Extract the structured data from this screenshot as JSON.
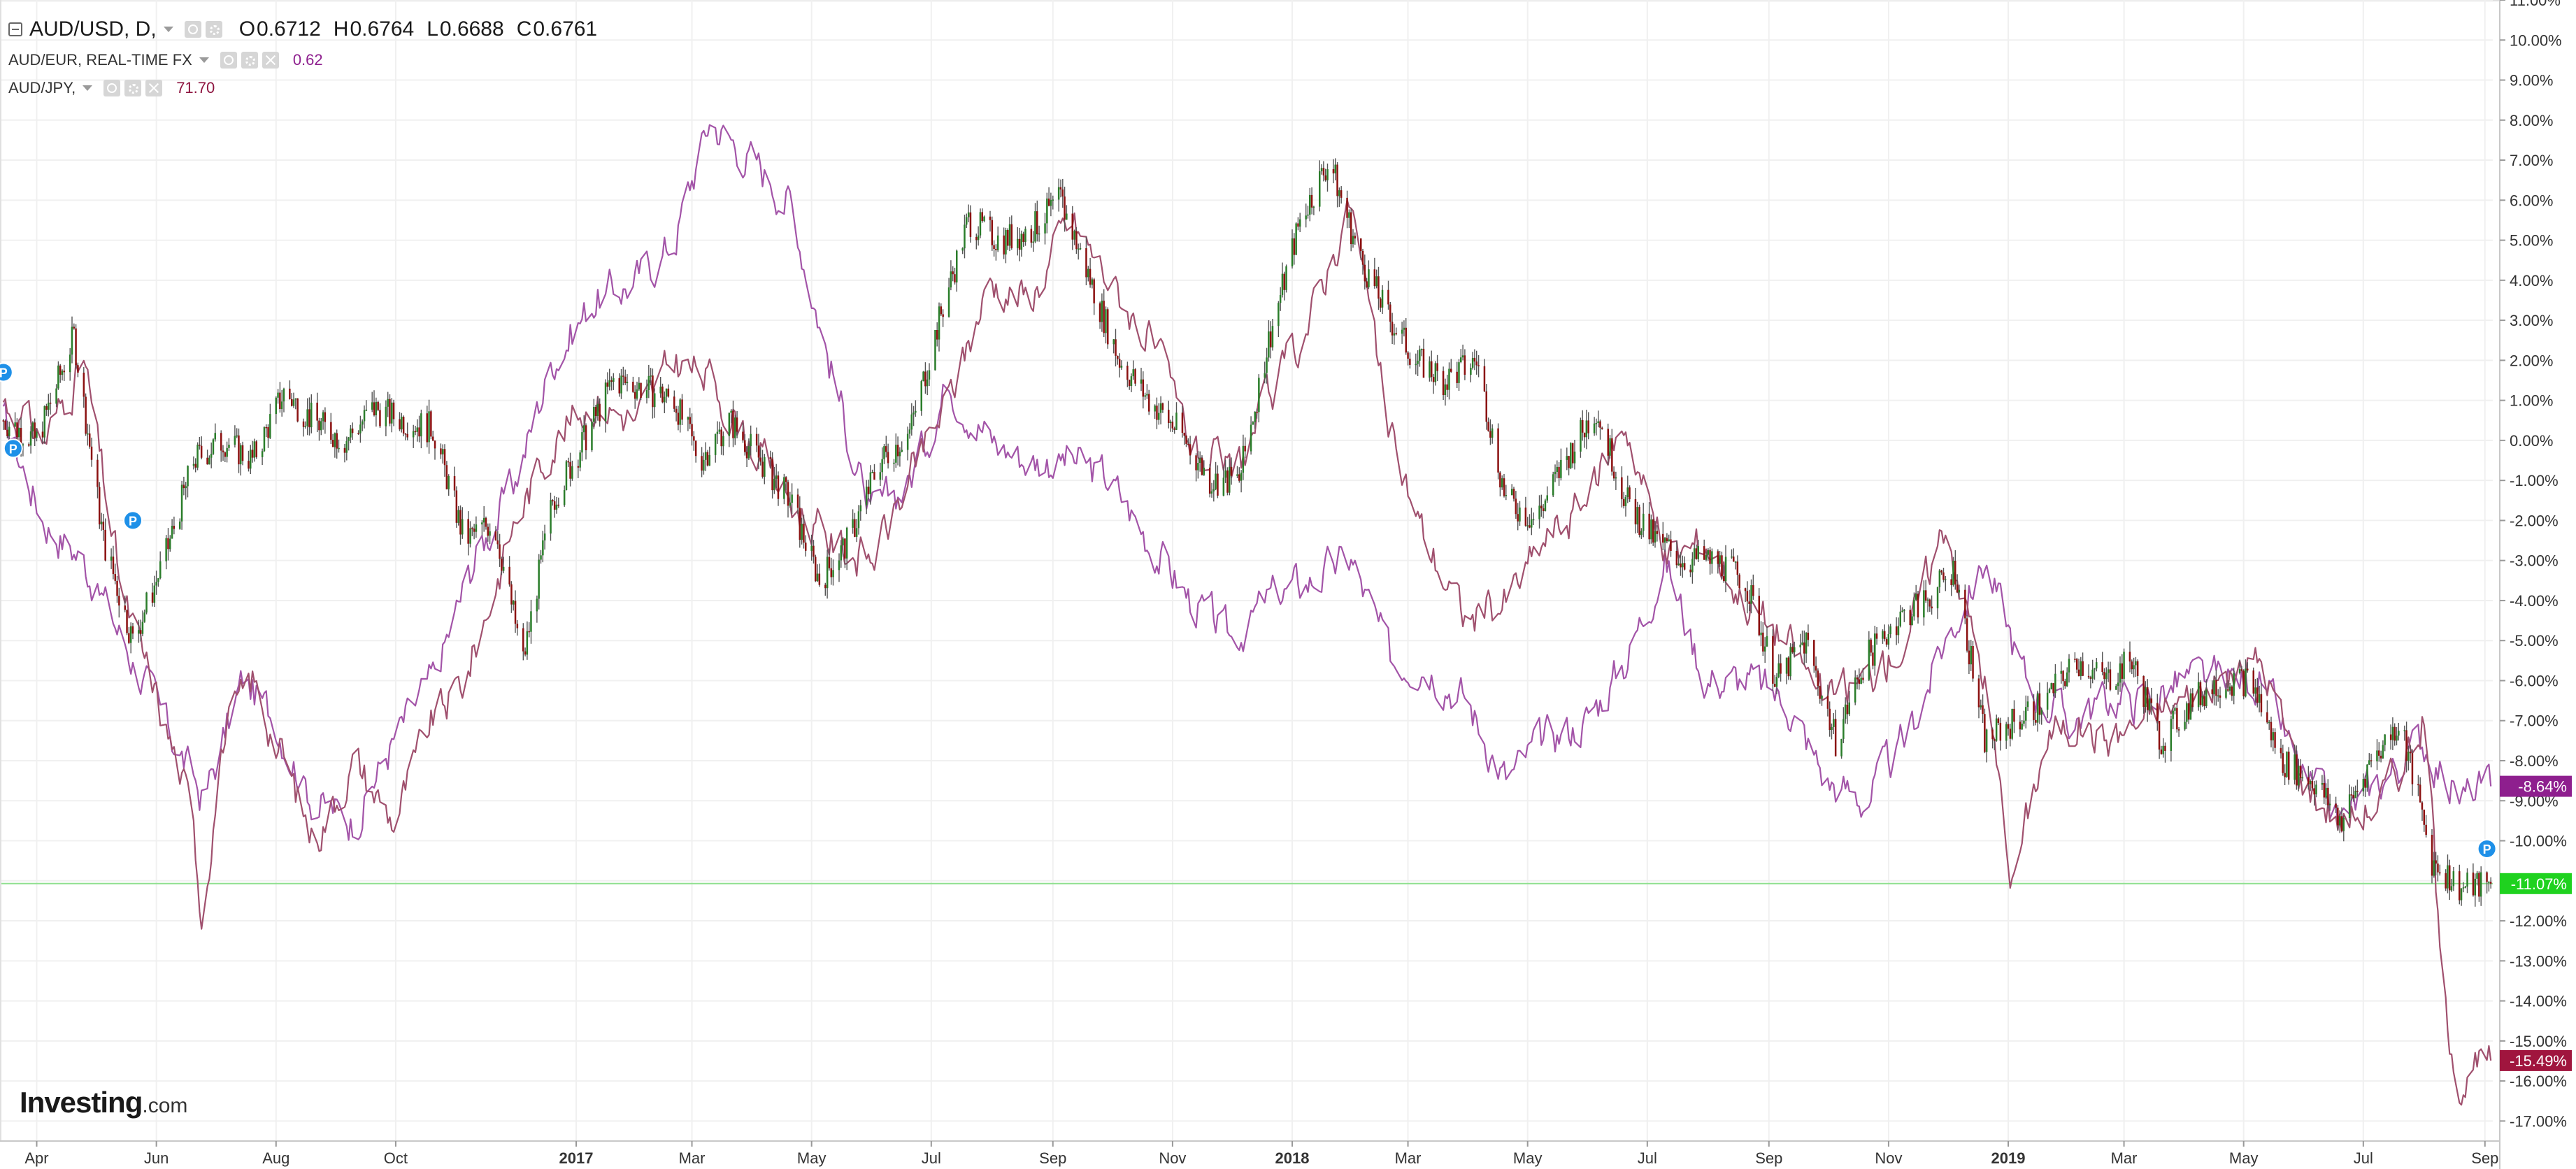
{
  "legend": {
    "main": {
      "symbol": "AUD/USD, D,",
      "open_label": "O",
      "open": "0.6712",
      "high_label": "H",
      "high": "0.6764",
      "low_label": "L",
      "low": "0.6688",
      "close_label": "C",
      "close": "0.6761"
    },
    "compare": [
      {
        "symbol": "AUD/EUR, REAL-TIME FX",
        "value": "0.62",
        "color": "#8e1f8e"
      },
      {
        "symbol": "AUD/JPY,",
        "value": "71.70",
        "color": "#8e1540"
      }
    ]
  },
  "brand": {
    "name": "Investing",
    "suffix": ".com"
  },
  "colors": {
    "up_candle": "#2a7d2a",
    "down_candle": "#8b1010",
    "audeur_line": "#a354a8",
    "audjpy_line": "#a0506e",
    "grid": "#f0f0f0",
    "current_line": "#8fe08f",
    "badge_audusd": "#1fd21f",
    "badge_audeur": "#8e1f8e",
    "badge_audjpy": "#a0153e",
    "event_marker": "#1e90e8"
  },
  "event_marker_label": "P",
  "chart_data": {
    "type": "line",
    "subtype": "percent comparison (AUD/USD daily candlesticks vs AUD/EUR and AUD/JPY lines)",
    "title": "AUD/USD, D,",
    "xlabel": "",
    "ylabel": "",
    "ylim": [
      -17.5,
      11.0
    ],
    "y_unit": "%",
    "y_ticks": [
      "11.00%",
      "10.00%",
      "9.00%",
      "8.00%",
      "7.00%",
      "6.00%",
      "5.00%",
      "4.00%",
      "3.00%",
      "2.00%",
      "1.00%",
      "0.00%",
      "-1.00%",
      "-2.00%",
      "-3.00%",
      "-4.00%",
      "-5.00%",
      "-6.00%",
      "-7.00%",
      "-8.00%",
      "-9.00%",
      "-10.00%",
      "-11.00%",
      "-12.00%",
      "-13.00%",
      "-14.00%",
      "-15.00%",
      "-16.00%",
      "-17.00%"
    ],
    "y_tick_values": [
      11,
      10,
      9,
      8,
      7,
      6,
      5,
      4,
      3,
      2,
      1,
      0,
      -1,
      -2,
      -3,
      -4,
      -5,
      -6,
      -7,
      -8,
      -9,
      -10,
      -11,
      -12,
      -13,
      -14,
      -15,
      -16,
      -17
    ],
    "x_range": [
      "2016-03-14",
      "2019-09-05"
    ],
    "x_ticks": [
      {
        "label": "Apr",
        "date": "2016-04-01",
        "bold": false
      },
      {
        "label": "Jun",
        "date": "2016-06-01",
        "bold": false
      },
      {
        "label": "Aug",
        "date": "2016-08-01",
        "bold": false
      },
      {
        "label": "Oct",
        "date": "2016-10-01",
        "bold": false
      },
      {
        "label": "2017",
        "date": "2017-01-01",
        "bold": true
      },
      {
        "label": "Mar",
        "date": "2017-03-01",
        "bold": false
      },
      {
        "label": "May",
        "date": "2017-05-01",
        "bold": false
      },
      {
        "label": "Jul",
        "date": "2017-07-01",
        "bold": false
      },
      {
        "label": "Sep",
        "date": "2017-09-01",
        "bold": false
      },
      {
        "label": "Nov",
        "date": "2017-11-01",
        "bold": false
      },
      {
        "label": "2018",
        "date": "2018-01-01",
        "bold": true
      },
      {
        "label": "Mar",
        "date": "2018-03-01",
        "bold": false
      },
      {
        "label": "May",
        "date": "2018-05-01",
        "bold": false
      },
      {
        "label": "Jul",
        "date": "2018-07-01",
        "bold": false
      },
      {
        "label": "Sep",
        "date": "2018-09-01",
        "bold": false
      },
      {
        "label": "Nov",
        "date": "2018-11-01",
        "bold": false
      },
      {
        "label": "2019",
        "date": "2019-01-01",
        "bold": true
      },
      {
        "label": "Mar",
        "date": "2019-03-01",
        "bold": false
      },
      {
        "label": "May",
        "date": "2019-05-01",
        "bold": false
      },
      {
        "label": "Jul",
        "date": "2019-07-01",
        "bold": false
      },
      {
        "label": "Sep",
        "date": "2019-09-01",
        "bold": false
      }
    ],
    "grid": true,
    "current_level": -11.07,
    "last_value_badges": [
      {
        "series": "AUD/EUR",
        "label": "-8.64%",
        "value": -8.64
      },
      {
        "series": "AUD/USD",
        "label": "-11.07%",
        "value": -11.07
      },
      {
        "series": "AUD/JPY",
        "label": "-15.49%",
        "value": -15.49
      }
    ],
    "event_markers": [
      {
        "date": "2016-03-15",
        "value": 1.7
      },
      {
        "date": "2016-03-20",
        "value": -0.2
      },
      {
        "date": "2016-05-20",
        "value": -2.0
      },
      {
        "date": "2019-09-02",
        "value": -10.2
      }
    ],
    "series": [
      {
        "name": "AUD/USD",
        "style": "candlestick",
        "x": [
          "2016-03-15",
          "2016-04-01",
          "2016-04-20",
          "2016-05-05",
          "2016-05-20",
          "2016-06-05",
          "2016-06-20",
          "2016-07-05",
          "2016-07-20",
          "2016-08-05",
          "2016-08-20",
          "2016-09-05",
          "2016-09-20",
          "2016-10-05",
          "2016-10-20",
          "2016-11-05",
          "2016-11-20",
          "2016-12-05",
          "2016-12-20",
          "2017-01-05",
          "2017-01-20",
          "2017-02-05",
          "2017-02-20",
          "2017-03-05",
          "2017-03-20",
          "2017-04-05",
          "2017-04-20",
          "2017-05-05",
          "2017-05-20",
          "2017-06-05",
          "2017-06-20",
          "2017-07-05",
          "2017-07-20",
          "2017-08-05",
          "2017-08-20",
          "2017-09-05",
          "2017-09-20",
          "2017-10-05",
          "2017-10-20",
          "2017-11-05",
          "2017-11-20",
          "2017-12-05",
          "2017-12-20",
          "2018-01-05",
          "2018-01-20",
          "2018-02-05",
          "2018-02-20",
          "2018-03-05",
          "2018-03-20",
          "2018-04-05",
          "2018-04-20",
          "2018-05-05",
          "2018-05-20",
          "2018-06-05",
          "2018-06-20",
          "2018-07-05",
          "2018-07-20",
          "2018-08-05",
          "2018-08-20",
          "2018-09-05",
          "2018-09-20",
          "2018-10-05",
          "2018-10-20",
          "2018-11-05",
          "2018-11-20",
          "2018-12-05",
          "2018-12-20",
          "2019-01-05",
          "2019-01-20",
          "2019-02-05",
          "2019-02-20",
          "2019-03-05",
          "2019-03-20",
          "2019-04-05",
          "2019-04-20",
          "2019-05-05",
          "2019-05-20",
          "2019-06-05",
          "2019-06-20",
          "2019-07-05",
          "2019-07-20",
          "2019-08-05",
          "2019-08-20",
          "2019-09-04"
        ],
        "values": [
          0.5,
          0.0,
          2.6,
          -2.5,
          -5.0,
          -3.0,
          -0.5,
          0.0,
          -0.5,
          1.2,
          0.5,
          0.0,
          0.8,
          0.5,
          0.3,
          -2.5,
          -2.0,
          -5.5,
          -1.5,
          0.0,
          1.5,
          1.3,
          1.0,
          -0.5,
          0.5,
          -0.5,
          -1.5,
          -3.5,
          -2.5,
          -0.5,
          0.2,
          3.0,
          5.5,
          5.0,
          5.2,
          6.0,
          4.0,
          2.0,
          1.0,
          0.2,
          -1.0,
          -1.0,
          2.5,
          5.5,
          7.0,
          4.5,
          3.0,
          2.0,
          1.5,
          2.0,
          -1.5,
          -2.0,
          -0.5,
          0.8,
          -1.5,
          -2.5,
          -3.0,
          -3.0,
          -3.5,
          -6.0,
          -5.0,
          -7.5,
          -5.5,
          -4.5,
          -4.0,
          -3.2,
          -7.5,
          -7.0,
          -6.5,
          -5.5,
          -6.0,
          -5.5,
          -7.5,
          -6.5,
          -6.0,
          -6.0,
          -8.0,
          -8.5,
          -9.5,
          -8.0,
          -7.0,
          -10.5,
          -11.2,
          -11.07
        ]
      },
      {
        "name": "AUD/EUR",
        "style": "line",
        "x": [
          "2016-03-15",
          "2016-04-05",
          "2016-04-25",
          "2016-05-15",
          "2016-06-05",
          "2016-06-25",
          "2016-07-15",
          "2016-08-01",
          "2016-08-20",
          "2016-09-10",
          "2016-09-30",
          "2016-10-20",
          "2016-11-10",
          "2016-12-01",
          "2016-12-20",
          "2017-01-10",
          "2017-02-01",
          "2017-02-20",
          "2017-03-10",
          "2017-03-31",
          "2017-04-20",
          "2017-05-10",
          "2017-05-31",
          "2017-06-20",
          "2017-07-10",
          "2017-07-31",
          "2017-08-20",
          "2017-09-10",
          "2017-09-30",
          "2017-10-20",
          "2017-11-10",
          "2017-12-01",
          "2017-12-20",
          "2018-01-10",
          "2018-01-31",
          "2018-02-20",
          "2018-03-10",
          "2018-03-31",
          "2018-04-20",
          "2018-05-10",
          "2018-05-31",
          "2018-06-20",
          "2018-07-10",
          "2018-07-31",
          "2018-08-20",
          "2018-09-10",
          "2018-09-30",
          "2018-10-20",
          "2018-11-10",
          "2018-11-30",
          "2018-12-20",
          "2019-01-10",
          "2019-01-31",
          "2019-02-20",
          "2019-03-10",
          "2019-03-31",
          "2019-04-20",
          "2019-05-10",
          "2019-05-31",
          "2019-06-20",
          "2019-07-10",
          "2019-07-31",
          "2019-08-20",
          "2019-09-04"
        ],
        "values": [
          0.5,
          -2.0,
          -3.0,
          -5.0,
          -7.0,
          -9.0,
          -6.0,
          -7.0,
          -9.0,
          -9.5,
          -7.5,
          -6.0,
          -3.0,
          -1.0,
          2.0,
          3.5,
          4.0,
          5.0,
          8.0,
          7.0,
          6.0,
          2.0,
          -2.0,
          -1.0,
          1.5,
          0.0,
          -0.5,
          -0.5,
          -1.0,
          -2.5,
          -4.0,
          -5.0,
          -4.0,
          -3.5,
          -3.0,
          -5.5,
          -5.5,
          -6.5,
          -8.5,
          -7.5,
          -7.0,
          -5.5,
          -3.0,
          -6.0,
          -6.0,
          -6.5,
          -8.5,
          -9.0,
          -7.5,
          -5.0,
          -3.0,
          -6.0,
          -7.0,
          -6.5,
          -6.5,
          -6.0,
          -6.0,
          -6.0,
          -8.5,
          -9.5,
          -8.5,
          -7.5,
          -9.0,
          -8.64
        ]
      },
      {
        "name": "AUD/JPY",
        "style": "line",
        "x": [
          "2016-03-15",
          "2016-04-05",
          "2016-04-25",
          "2016-05-15",
          "2016-06-05",
          "2016-06-20",
          "2016-06-24",
          "2016-07-05",
          "2016-07-20",
          "2016-08-05",
          "2016-08-20",
          "2016-09-10",
          "2016-09-30",
          "2016-10-20",
          "2016-11-05",
          "2016-11-15",
          "2016-12-01",
          "2016-12-20",
          "2017-01-10",
          "2017-02-01",
          "2017-02-20",
          "2017-03-10",
          "2017-03-31",
          "2017-04-20",
          "2017-05-10",
          "2017-05-31",
          "2017-06-20",
          "2017-07-10",
          "2017-07-31",
          "2017-08-20",
          "2017-09-10",
          "2017-09-30",
          "2017-10-20",
          "2017-11-10",
          "2017-12-01",
          "2017-12-20",
          "2018-01-10",
          "2018-01-31",
          "2018-02-20",
          "2018-03-10",
          "2018-03-31",
          "2018-04-20",
          "2018-05-10",
          "2018-05-31",
          "2018-06-20",
          "2018-07-10",
          "2018-07-31",
          "2018-08-20",
          "2018-09-10",
          "2018-09-30",
          "2018-10-20",
          "2018-11-10",
          "2018-11-30",
          "2018-12-20",
          "2019-01-03",
          "2019-01-20",
          "2019-02-05",
          "2019-02-20",
          "2019-03-10",
          "2019-03-31",
          "2019-04-20",
          "2019-05-10",
          "2019-05-31",
          "2019-06-20",
          "2019-07-10",
          "2019-07-31",
          "2019-08-05",
          "2019-08-10",
          "2019-08-20",
          "2019-09-04"
        ],
        "values": [
          1.0,
          0.0,
          2.0,
          -4.0,
          -7.0,
          -9.5,
          -11.8,
          -7.5,
          -6.0,
          -8.0,
          -10.0,
          -8.0,
          -9.5,
          -7.0,
          -6.0,
          -4.5,
          -2.0,
          0.0,
          1.0,
          0.5,
          2.0,
          1.5,
          0.0,
          -1.5,
          -2.5,
          -3.0,
          -1.0,
          1.0,
          4.0,
          3.5,
          5.5,
          4.0,
          2.5,
          0.0,
          -1.0,
          1.0,
          3.0,
          6.0,
          0.0,
          -2.5,
          -4.5,
          -4.0,
          -2.5,
          -1.5,
          0.5,
          -3.0,
          -2.5,
          -4.0,
          -5.0,
          -6.5,
          -6.0,
          -5.0,
          -2.0,
          -6.0,
          -11.0,
          -7.5,
          -7.0,
          -7.5,
          -7.0,
          -6.5,
          -6.0,
          -5.5,
          -8.5,
          -9.5,
          -9.0,
          -7.0,
          -9.0,
          -14.0,
          -16.0,
          -15.49
        ]
      }
    ]
  }
}
